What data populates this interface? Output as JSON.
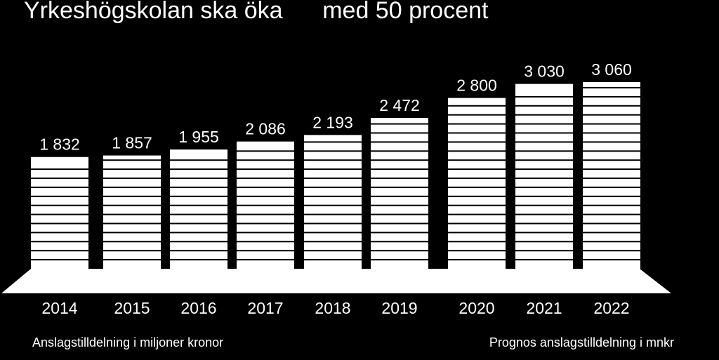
{
  "title": "Yrkeshögskolan ska öka      med 50 procent",
  "notes": {
    "left": "Anslagstilldelning i miljoner kronor",
    "right": "Prognos anslagstilldelning i mnkr"
  },
  "colors": {
    "background": "#000000",
    "bar": "#ffffff",
    "stripe": "#000000",
    "text": "#ffffff"
  },
  "chart_data": {
    "type": "bar",
    "title": "Yrkeshögskolan ska öka      med 50 procent",
    "categories": [
      "2014",
      "2015",
      "2016",
      "2017",
      "2018",
      "2019",
      "2020",
      "2021",
      "2022"
    ],
    "values": [
      1832,
      1857,
      1955,
      2086,
      2193,
      2472,
      2800,
      3030,
      3060
    ],
    "value_labels": [
      "1 832",
      "1 857",
      "1 955",
      "2 086",
      "2 193",
      "2 472",
      "2 800",
      "3 030",
      "3 060"
    ],
    "xlabel": "",
    "ylabel": "",
    "ylim": [
      0,
      3060
    ],
    "grid": false,
    "legend": "none",
    "forecast_from": "2020"
  }
}
